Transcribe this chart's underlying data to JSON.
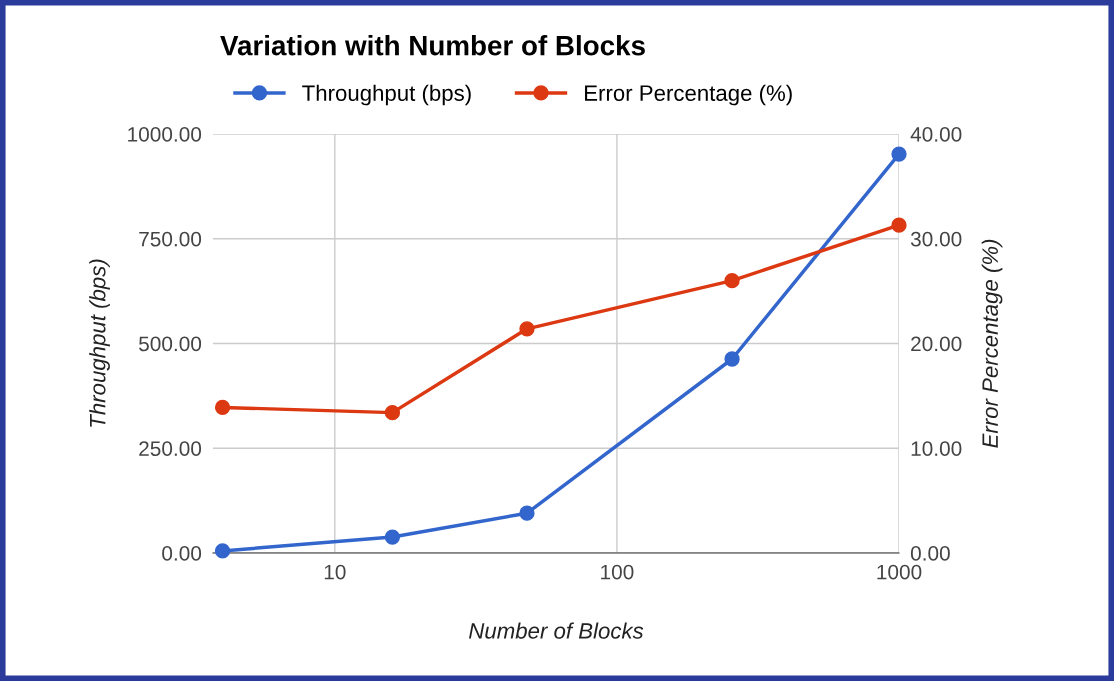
{
  "chart_data": {
    "type": "line",
    "title": "Variation with Number of Blocks",
    "xlabel": "Number of Blocks",
    "ylabel": "Throughput (bps)",
    "y2label": "Error Percentage (%)",
    "x": [
      4,
      16,
      48,
      256,
      1000
    ],
    "series": [
      {
        "name": "Throughput (bps)",
        "color": "#3366cc",
        "values": [
          5,
          38,
          95,
          463,
          952
        ]
      },
      {
        "name": "Error Percentage (%)",
        "color": "#dc3912",
        "axis": "y2",
        "values": [
          13.9,
          13.4,
          21.4,
          26.0,
          31.3
        ]
      }
    ],
    "log": "x",
    "xlim": [
      3.7,
      1000
    ],
    "xticks": [
      10,
      100,
      1000
    ],
    "ylim": [
      0,
      1000
    ],
    "yticks": [
      {
        "value": 0,
        "label": "0.00"
      },
      {
        "value": 250,
        "label": "250.00"
      },
      {
        "value": 500,
        "label": "500.00"
      },
      {
        "value": 750,
        "label": "750.00"
      },
      {
        "value": 1000,
        "label": "1000.00"
      }
    ],
    "y2lim": [
      0,
      40
    ],
    "y2ticks": [
      {
        "value": 0,
        "label": "0.00"
      },
      {
        "value": 10,
        "label": "10.00"
      },
      {
        "value": 20,
        "label": "20.00"
      },
      {
        "value": 30,
        "label": "30.00"
      },
      {
        "value": 40,
        "label": "40.00"
      }
    ],
    "grid": true,
    "legend": "top",
    "marker": "circle",
    "line_style": "solid"
  }
}
